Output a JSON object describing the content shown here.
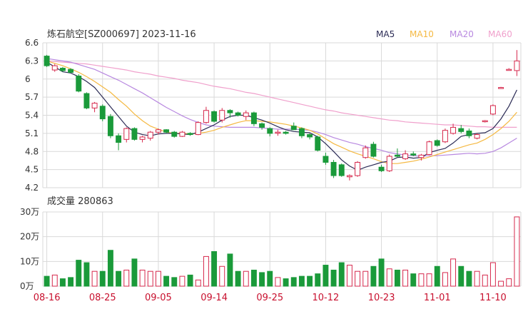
{
  "title": "炼石航空[SZ000697] 2023-11-16",
  "legend": [
    {
      "label": "MA5",
      "color": "#2b2b55"
    },
    {
      "label": "MA10",
      "color": "#f5b942"
    },
    {
      "label": "MA20",
      "color": "#b888e0"
    },
    {
      "label": "MA60",
      "color": "#f0a0cc"
    }
  ],
  "volume_title": "成交量 280863",
  "colors": {
    "up": "#d6284c",
    "down": "#1a9a3a",
    "grid": "#d9d9d9"
  },
  "chart_data": {
    "type": "candlestick",
    "price_axis": {
      "ticks": [
        "6.6",
        "6.3",
        "6",
        "5.7",
        "5.4",
        "5.1",
        "4.8",
        "4.5",
        "4.2"
      ],
      "ylim": [
        4.2,
        6.6
      ]
    },
    "volume_axis": {
      "ticks": [
        "30万",
        "20万",
        "10万",
        "0万"
      ],
      "ylim": [
        0,
        30
      ]
    },
    "x_ticks": [
      {
        "label": "08-16",
        "index": 0
      },
      {
        "label": "08-25",
        "index": 7
      },
      {
        "label": "09-05",
        "index": 14
      },
      {
        "label": "09-14",
        "index": 21
      },
      {
        "label": "09-25",
        "index": 28
      },
      {
        "label": "10-12",
        "index": 35
      },
      {
        "label": "10-23",
        "index": 42
      },
      {
        "label": "11-01",
        "index": 49
      },
      {
        "label": "11-10",
        "index": 56
      }
    ],
    "ohlc": [
      [
        6.38,
        6.4,
        6.2,
        6.22
      ],
      [
        6.15,
        6.25,
        6.12,
        6.22
      ],
      [
        6.18,
        6.2,
        6.12,
        6.14
      ],
      [
        6.16,
        6.18,
        6.1,
        6.11
      ],
      [
        6.05,
        6.08,
        5.78,
        5.8
      ],
      [
        5.76,
        5.78,
        5.5,
        5.52
      ],
      [
        5.52,
        5.62,
        5.45,
        5.6
      ],
      [
        5.55,
        5.58,
        5.3,
        5.34
      ],
      [
        5.38,
        5.42,
        5.02,
        5.06
      ],
      [
        5.06,
        5.1,
        4.82,
        4.95
      ],
      [
        5.0,
        5.2,
        4.95,
        5.18
      ],
      [
        5.18,
        5.2,
        4.98,
        5.0
      ],
      [
        5.0,
        5.06,
        4.95,
        5.04
      ],
      [
        5.02,
        5.14,
        4.98,
        5.12
      ],
      [
        5.12,
        5.18,
        5.08,
        5.16
      ],
      [
        5.16,
        5.17,
        5.1,
        5.12
      ],
      [
        5.12,
        5.14,
        5.03,
        5.05
      ],
      [
        5.05,
        5.14,
        5.04,
        5.12
      ],
      [
        5.1,
        5.12,
        5.06,
        5.08
      ],
      [
        5.08,
        5.3,
        5.07,
        5.28
      ],
      [
        5.28,
        5.54,
        5.26,
        5.48
      ],
      [
        5.46,
        5.48,
        5.28,
        5.3
      ],
      [
        5.32,
        5.52,
        5.28,
        5.48
      ],
      [
        5.48,
        5.5,
        5.36,
        5.44
      ],
      [
        5.44,
        5.46,
        5.38,
        5.4
      ],
      [
        5.38,
        5.48,
        5.32,
        5.44
      ],
      [
        5.44,
        5.46,
        5.22,
        5.26
      ],
      [
        5.26,
        5.28,
        5.16,
        5.2
      ],
      [
        5.18,
        5.2,
        5.05,
        5.1
      ],
      [
        5.12,
        5.16,
        5.06,
        5.12
      ],
      [
        5.12,
        5.14,
        5.08,
        5.1
      ],
      [
        5.22,
        5.28,
        5.16,
        5.16
      ],
      [
        5.18,
        5.2,
        5.02,
        5.06
      ],
      [
        5.08,
        5.1,
        5.0,
        5.04
      ],
      [
        5.04,
        5.06,
        4.8,
        4.82
      ],
      [
        4.72,
        4.78,
        4.58,
        4.62
      ],
      [
        4.62,
        4.66,
        4.36,
        4.4
      ],
      [
        4.58,
        4.6,
        4.38,
        4.4
      ],
      [
        4.38,
        4.42,
        4.32,
        4.4
      ],
      [
        4.4,
        4.64,
        4.38,
        4.62
      ],
      [
        4.7,
        4.9,
        4.68,
        4.86
      ],
      [
        4.92,
        4.96,
        4.7,
        4.72
      ],
      [
        4.54,
        4.58,
        4.46,
        4.48
      ],
      [
        4.48,
        4.75,
        4.46,
        4.72
      ],
      [
        4.74,
        4.85,
        4.7,
        4.72
      ],
      [
        4.68,
        4.82,
        4.66,
        4.76
      ],
      [
        4.76,
        4.8,
        4.72,
        4.74
      ],
      [
        4.7,
        4.76,
        4.65,
        4.74
      ],
      [
        4.75,
        4.98,
        4.74,
        4.96
      ],
      [
        4.98,
        5.0,
        4.88,
        4.9
      ],
      [
        4.96,
        5.18,
        4.94,
        5.15
      ],
      [
        5.1,
        5.26,
        5.08,
        5.2
      ],
      [
        5.18,
        5.24,
        5.1,
        5.13
      ],
      [
        5.14,
        5.18,
        5.02,
        5.06
      ],
      [
        5.02,
        5.1,
        5.0,
        5.08
      ],
      [
        5.3,
        5.32,
        5.28,
        5.31
      ],
      [
        5.42,
        5.58,
        5.4,
        5.56
      ],
      [
        5.86,
        5.87,
        5.85,
        5.86
      ],
      [
        6.16,
        6.18,
        6.14,
        6.16
      ],
      [
        6.14,
        6.48,
        6.05,
        6.3
      ]
    ],
    "volume": [
      4.0,
      4.5,
      3.0,
      3.5,
      10.5,
      9.5,
      6.0,
      6.0,
      14.5,
      6.0,
      6.5,
      11.0,
      6.5,
      6.0,
      6.0,
      4.0,
      3.5,
      4.0,
      4.5,
      2.5,
      12.0,
      14.0,
      8.0,
      13.0,
      6.0,
      6.0,
      6.5,
      5.5,
      6.0,
      3.5,
      3.0,
      3.5,
      4.0,
      4.0,
      5.0,
      8.5,
      6.5,
      9.5,
      8.5,
      6.0,
      6.0,
      8.0,
      11.0,
      7.0,
      6.5,
      6.5,
      5.0,
      5.0,
      5.0,
      8.0,
      5.5,
      11.0,
      8.0,
      6.0,
      6.0,
      4.5,
      9.5,
      2.0,
      3.0,
      28.0
    ],
    "ma5": [
      6.28,
      6.2,
      6.12,
      6.1,
      6.04,
      5.96,
      5.86,
      5.7,
      5.54,
      5.38,
      5.22,
      5.12,
      5.08,
      5.06,
      5.09,
      5.1,
      5.1,
      5.09,
      5.08,
      5.12,
      5.18,
      5.24,
      5.32,
      5.38,
      5.4,
      5.4,
      5.36,
      5.32,
      5.27,
      5.21,
      5.16,
      5.13,
      5.12,
      5.11,
      5.04,
      4.93,
      4.8,
      4.66,
      4.56,
      4.49,
      4.54,
      4.58,
      4.62,
      4.64,
      4.7,
      4.71,
      4.69,
      4.7,
      4.78,
      4.82,
      4.85,
      4.94,
      5.05,
      5.08,
      5.1,
      5.11,
      5.18,
      5.34,
      5.55,
      5.82
    ],
    "ma10": [
      6.3,
      6.26,
      6.22,
      6.17,
      6.11,
      6.04,
      5.96,
      5.87,
      5.78,
      5.66,
      5.55,
      5.42,
      5.31,
      5.22,
      5.17,
      5.12,
      5.1,
      5.1,
      5.09,
      5.1,
      5.12,
      5.15,
      5.2,
      5.24,
      5.28,
      5.31,
      5.31,
      5.3,
      5.29,
      5.27,
      5.25,
      5.22,
      5.19,
      5.15,
      5.09,
      5.01,
      4.93,
      4.87,
      4.81,
      4.76,
      4.72,
      4.68,
      4.63,
      4.6,
      4.6,
      4.62,
      4.64,
      4.67,
      4.71,
      4.75,
      4.79,
      4.83,
      4.87,
      4.91,
      4.94,
      5.0,
      5.08,
      5.18,
      5.3,
      5.45
    ],
    "ma20": [
      6.34,
      6.32,
      6.3,
      6.28,
      6.24,
      6.2,
      6.16,
      6.1,
      6.04,
      5.98,
      5.91,
      5.84,
      5.77,
      5.69,
      5.61,
      5.53,
      5.46,
      5.39,
      5.33,
      5.28,
      5.24,
      5.22,
      5.21,
      5.2,
      5.2,
      5.2,
      5.2,
      5.19,
      5.18,
      5.17,
      5.17,
      5.17,
      5.16,
      5.15,
      5.12,
      5.08,
      5.03,
      4.99,
      4.95,
      4.92,
      4.88,
      4.85,
      4.82,
      4.78,
      4.76,
      4.74,
      4.73,
      4.72,
      4.73,
      4.73,
      4.74,
      4.75,
      4.76,
      4.77,
      4.76,
      4.77,
      4.8,
      4.86,
      4.94,
      5.02
    ],
    "ma60": [
      6.3,
      6.29,
      6.28,
      6.27,
      6.26,
      6.25,
      6.23,
      6.21,
      6.19,
      6.17,
      6.15,
      6.12,
      6.1,
      6.08,
      6.05,
      6.03,
      6.01,
      5.98,
      5.96,
      5.94,
      5.91,
      5.88,
      5.86,
      5.84,
      5.81,
      5.78,
      5.76,
      5.73,
      5.7,
      5.67,
      5.64,
      5.61,
      5.58,
      5.55,
      5.52,
      5.49,
      5.47,
      5.44,
      5.42,
      5.4,
      5.38,
      5.36,
      5.34,
      5.32,
      5.31,
      5.29,
      5.28,
      5.27,
      5.26,
      5.25,
      5.24,
      5.24,
      5.23,
      5.22,
      5.21,
      5.21,
      5.2,
      5.2,
      5.2,
      5.2
    ]
  }
}
